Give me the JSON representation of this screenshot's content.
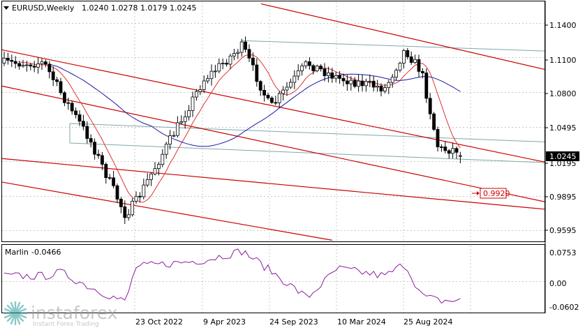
{
  "header": {
    "symbol": "EURUSD,Weekly",
    "ohlc": "1.0240 1.0278 1.0179 1.0245"
  },
  "indicator": {
    "name": "Marlin",
    "value": "-0.0466",
    "ticks": [
      "0.0753",
      "0.00",
      "-0.0602"
    ]
  },
  "price_axis": {
    "ticks": [
      "1.1400",
      "1.1100",
      "1.0800",
      "1.0495",
      "1.0195",
      "0.9895",
      "0.9595"
    ],
    "current_price": "1.0245",
    "target_label": "0.9920"
  },
  "time_axis": {
    "labels": [
      "23 Oct 2022",
      "9 Apr 2023",
      "24 Sep 2023",
      "10 Mar 2024",
      "25 Aug 2024"
    ]
  },
  "watermark": {
    "brand": "instaforex",
    "tagline": "Instant Forex Trading"
  },
  "colors": {
    "bull": "#ffffff",
    "bear": "#000000",
    "channel": "#cc0000",
    "fast_ma": "#dd3333",
    "slow_ma": "#1a1aa6",
    "fib_lines": "#7fa8a8",
    "oscillator": "#8a1f9e",
    "target": "#cc0000"
  },
  "chart_data": [
    {
      "type": "candlestick",
      "title": "EURUSD,Weekly",
      "ylim": [
        0.95,
        1.158
      ],
      "x": [
        "2022-03-07",
        "2022-04-18",
        "2022-06-27",
        "2022-09-26",
        "2022-10-23",
        "2023-04-09",
        "2023-07-16",
        "2023-09-24",
        "2023-12-25",
        "2024-03-10",
        "2024-07-07",
        "2024-08-25",
        "2024-10-06",
        "2024-11-17"
      ],
      "close": [
        1.105,
        1.079,
        1.04,
        0.973,
        0.985,
        1.09,
        1.12,
        1.066,
        1.105,
        1.092,
        1.083,
        1.117,
        1.097,
        1.03
      ],
      "current": 1.0245,
      "target": 0.992
    },
    {
      "type": "line",
      "name": "Marlin",
      "ylim": [
        -0.075,
        0.085
      ],
      "values": [
        0.012,
        0.021,
        -0.013,
        -0.05,
        0.034,
        0.05,
        0.072,
        0.025,
        -0.04,
        0.03,
        0.012,
        0.042,
        -0.035,
        -0.0466
      ]
    }
  ]
}
